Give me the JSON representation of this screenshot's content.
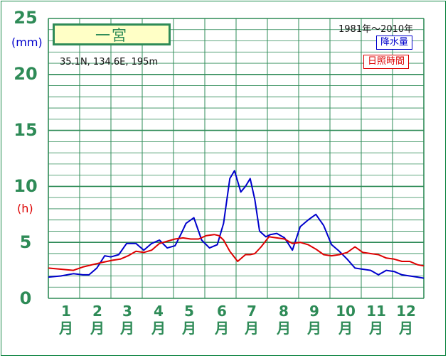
{
  "station": {
    "name": "一宮",
    "coords": "35.1N, 134.6E, 195m",
    "period": "1981年〜2010年"
  },
  "axis": {
    "precip_unit": "(mm)",
    "sun_unit": "(h)",
    "ticks": [
      "25",
      "20",
      "15",
      "10",
      "5",
      "0"
    ]
  },
  "months": [
    {
      "num": "1",
      "label": "月"
    },
    {
      "num": "2",
      "label": "月"
    },
    {
      "num": "3",
      "label": "月"
    },
    {
      "num": "4",
      "label": "月"
    },
    {
      "num": "5",
      "label": "月"
    },
    {
      "num": "6",
      "label": "月"
    },
    {
      "num": "7",
      "label": "月"
    },
    {
      "num": "8",
      "label": "月"
    },
    {
      "num": "9",
      "label": "月"
    },
    {
      "num": "10",
      "label": "月"
    },
    {
      "num": "11",
      "label": "月"
    },
    {
      "num": "12",
      "label": "月"
    }
  ],
  "legend": {
    "precip": "降水量",
    "sun": "日照時間"
  },
  "colors": {
    "grid": "#2e8b57",
    "precip": "#0000cc",
    "sun": "#dd0000"
  },
  "chart_data": {
    "type": "line",
    "ylim": [
      0,
      25
    ],
    "x_range": [
      0.5,
      12.5
    ],
    "series": [
      {
        "name": "降水量",
        "color": "#0000cc",
        "x": [
          0.5,
          0.9,
          1.3,
          1.6,
          1.8,
          2.05,
          2.3,
          2.5,
          2.75,
          3.0,
          3.3,
          3.55,
          3.8,
          4.05,
          4.3,
          4.55,
          4.75,
          4.9,
          5.15,
          5.4,
          5.65,
          5.9,
          6.1,
          6.3,
          6.45,
          6.65,
          6.8,
          6.95,
          7.1,
          7.25,
          7.45,
          7.6,
          7.8,
          8.05,
          8.3,
          8.55,
          8.8,
          9.05,
          9.3,
          9.55,
          9.8,
          10.05,
          10.3,
          10.55,
          10.8,
          11.05,
          11.3,
          11.55,
          11.8,
          12.05,
          12.3,
          12.5
        ],
        "y": [
          1.9,
          2.0,
          2.2,
          2.1,
          2.1,
          2.7,
          3.8,
          3.7,
          3.9,
          4.9,
          4.9,
          4.3,
          4.9,
          5.2,
          4.5,
          4.7,
          5.8,
          6.7,
          7.2,
          5.2,
          4.5,
          4.8,
          6.7,
          10.7,
          11.4,
          9.5,
          10.0,
          10.7,
          8.8,
          6.0,
          5.5,
          5.7,
          5.8,
          5.4,
          4.3,
          6.4,
          7.0,
          7.5,
          6.5,
          4.8,
          4.2,
          3.5,
          2.7,
          2.6,
          2.5,
          2.1,
          2.5,
          2.4,
          2.1,
          2.0,
          1.9,
          1.8
        ]
      },
      {
        "name": "日照時間",
        "color": "#dd0000",
        "x": [
          0.5,
          0.9,
          1.3,
          1.6,
          1.9,
          2.2,
          2.55,
          2.8,
          3.05,
          3.3,
          3.55,
          3.8,
          4.05,
          4.3,
          4.55,
          4.8,
          5.05,
          5.3,
          5.55,
          5.8,
          5.95,
          6.1,
          6.3,
          6.55,
          6.8,
          6.95,
          7.1,
          7.3,
          7.55,
          7.8,
          8.05,
          8.3,
          8.55,
          8.8,
          9.05,
          9.3,
          9.55,
          9.8,
          10.05,
          10.3,
          10.55,
          10.8,
          11.05,
          11.3,
          11.55,
          11.8,
          12.05,
          12.3,
          12.5
        ],
        "y": [
          2.7,
          2.6,
          2.5,
          2.8,
          3.0,
          3.2,
          3.4,
          3.5,
          3.8,
          4.2,
          4.1,
          4.3,
          4.9,
          5.1,
          5.3,
          5.4,
          5.3,
          5.3,
          5.6,
          5.7,
          5.6,
          5.2,
          4.2,
          3.3,
          3.9,
          3.9,
          4.0,
          4.6,
          5.5,
          5.4,
          5.3,
          4.9,
          5.0,
          4.8,
          4.4,
          3.9,
          3.8,
          3.9,
          4.1,
          4.6,
          4.1,
          4.0,
          3.9,
          3.6,
          3.5,
          3.3,
          3.3,
          3.0,
          2.9
        ]
      }
    ]
  }
}
